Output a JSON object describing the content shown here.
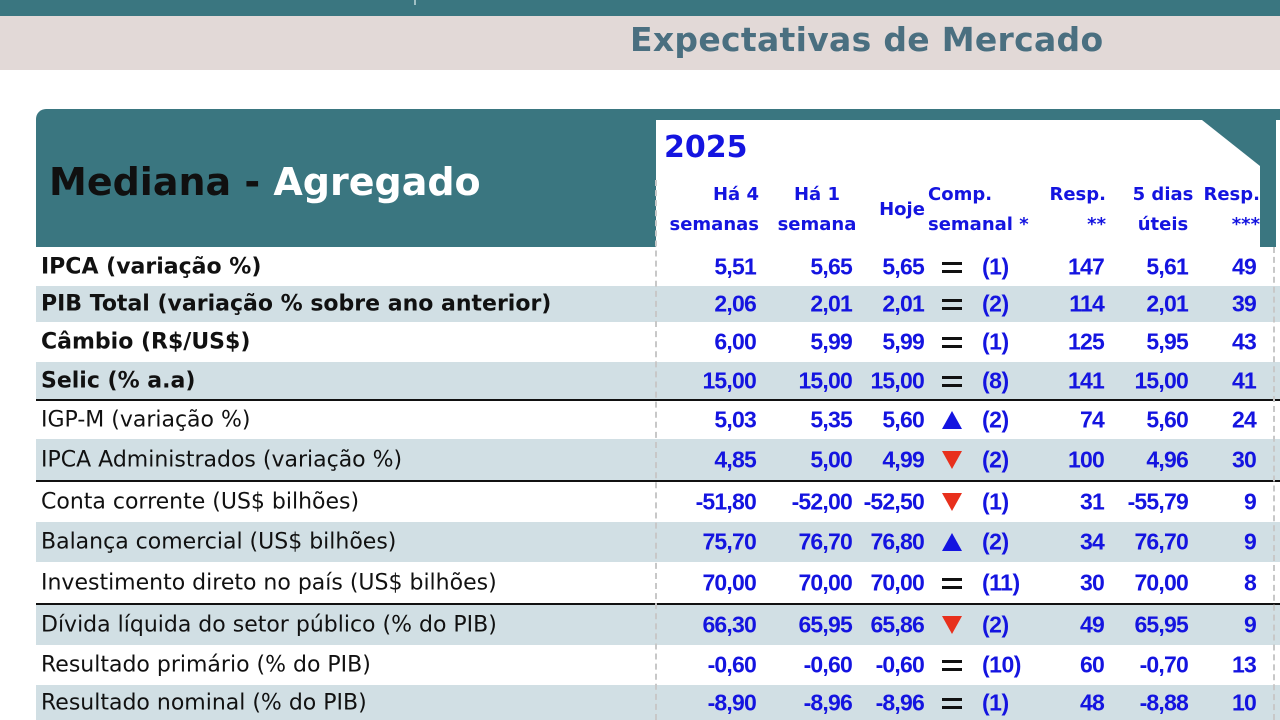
{
  "page_title": "Expectativas de Mercado",
  "header": {
    "title_part1": "Mediana - ",
    "title_part2": "Agregado",
    "year": "2025",
    "columns": [
      {
        "l1": "Há 4",
        "l2": "semanas"
      },
      {
        "l1": "Há 1",
        "l2": "semana"
      },
      {
        "l1": "",
        "l2": "Hoje"
      },
      {
        "l1": "Comp.",
        "l2": "semanal *"
      },
      {
        "l1": "Resp.",
        "l2": "**"
      },
      {
        "l1": "5 dias",
        "l2": "úteis"
      },
      {
        "l1": "Resp.",
        "l2": "***"
      }
    ]
  },
  "colors": {
    "header_bg": "#3a7680",
    "value_blue": "#1414e0",
    "down_red": "#e8301c",
    "row_shade": "#d1dfe4"
  },
  "rows": [
    {
      "label": "IPCA (variação %)",
      "bold": true,
      "h4": "5,51",
      "h1": "5,65",
      "hoje": "5,65",
      "trend": "equal",
      "weeks": "(1)",
      "resp": "147",
      "d5": "5,61",
      "resp3": "49"
    },
    {
      "label": "PIB Total (variação % sobre ano anterior)",
      "bold": true,
      "h4": "2,06",
      "h1": "2,01",
      "hoje": "2,01",
      "trend": "equal",
      "weeks": "(2)",
      "resp": "114",
      "d5": "2,01",
      "resp3": "39"
    },
    {
      "label": "Câmbio (R$/US$)",
      "bold": true,
      "h4": "6,00",
      "h1": "5,99",
      "hoje": "5,99",
      "trend": "equal",
      "weeks": "(1)",
      "resp": "125",
      "d5": "5,95",
      "resp3": "43"
    },
    {
      "label": "Selic (% a.a)",
      "bold": true,
      "h4": "15,00",
      "h1": "15,00",
      "hoje": "15,00",
      "trend": "equal",
      "weeks": "(8)",
      "resp": "141",
      "d5": "15,00",
      "resp3": "41"
    },
    {
      "label": "IGP-M (variação %)",
      "bold": false,
      "h4": "5,03",
      "h1": "5,35",
      "hoje": "5,60",
      "trend": "up",
      "weeks": "(2)",
      "resp": "74",
      "d5": "5,60",
      "resp3": "24"
    },
    {
      "label": "IPCA Administrados (variação %)",
      "bold": false,
      "h4": "4,85",
      "h1": "5,00",
      "hoje": "4,99",
      "trend": "down",
      "weeks": "(2)",
      "resp": "100",
      "d5": "4,96",
      "resp3": "30"
    },
    {
      "label": "Conta corrente (US$ bilhões)",
      "bold": false,
      "h4": "-51,80",
      "h1": "-52,00",
      "hoje": "-52,50",
      "trend": "down",
      "weeks": "(1)",
      "resp": "31",
      "d5": "-55,79",
      "resp3": "9"
    },
    {
      "label": "Balança comercial (US$ bilhões)",
      "bold": false,
      "h4": "75,70",
      "h1": "76,70",
      "hoje": "76,80",
      "trend": "up",
      "weeks": "(2)",
      "resp": "34",
      "d5": "76,70",
      "resp3": "9"
    },
    {
      "label": "Investimento direto no país (US$ bilhões)",
      "bold": false,
      "h4": "70,00",
      "h1": "70,00",
      "hoje": "70,00",
      "trend": "equal",
      "weeks": "(11)",
      "resp": "30",
      "d5": "70,00",
      "resp3": "8"
    },
    {
      "label": "Dívida líquida do setor público (% do PIB)",
      "bold": false,
      "h4": "66,30",
      "h1": "65,95",
      "hoje": "65,86",
      "trend": "down",
      "weeks": "(2)",
      "resp": "49",
      "d5": "65,95",
      "resp3": "9"
    },
    {
      "label": "Resultado primário (% do PIB)",
      "bold": false,
      "h4": "-0,60",
      "h1": "-0,60",
      "hoje": "-0,60",
      "trend": "equal",
      "weeks": "(10)",
      "resp": "60",
      "d5": "-0,70",
      "resp3": "13"
    },
    {
      "label": "Resultado nominal (% do PIB)",
      "bold": false,
      "h4": "-8,90",
      "h1": "-8,96",
      "hoje": "-8,96",
      "trend": "equal",
      "weeks": "(1)",
      "resp": "48",
      "d5": "-8,88",
      "resp3": "10"
    }
  ]
}
